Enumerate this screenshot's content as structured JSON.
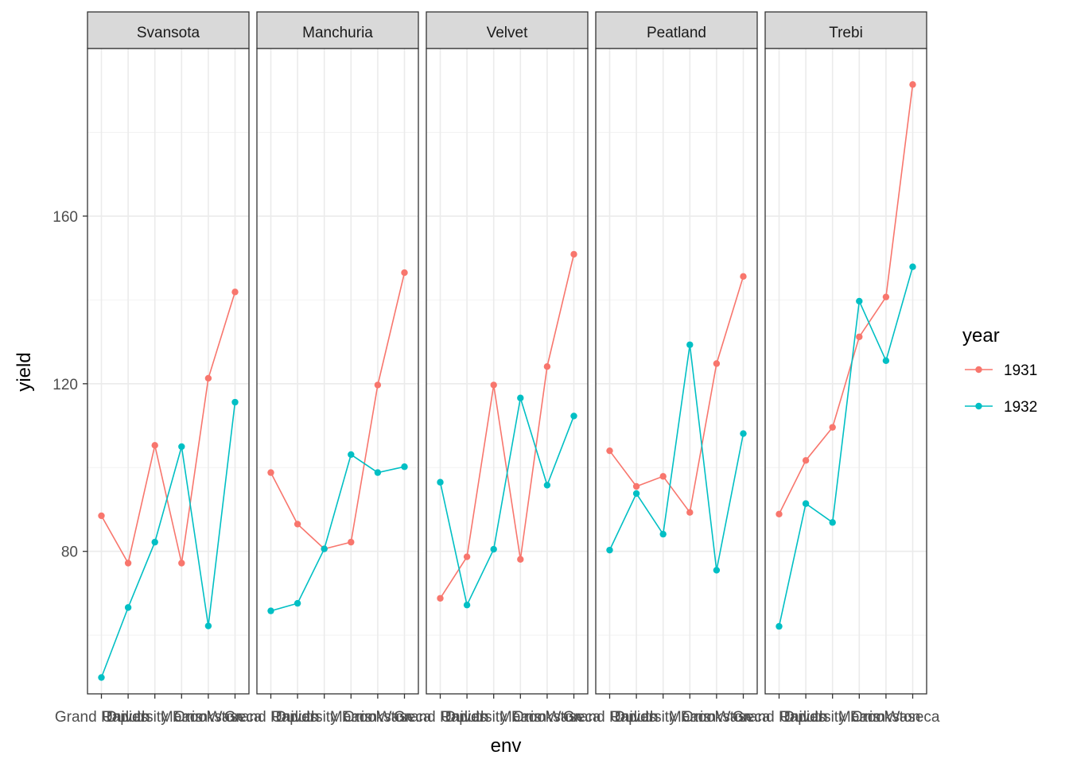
{
  "chart_data": {
    "type": "line",
    "xlabel": "env",
    "ylabel": "yield",
    "x": [
      "Grand Rapids",
      "Duluth",
      "University Farm",
      "Morris",
      "Crookston",
      "Waseca"
    ],
    "y_ticks": [
      80,
      120,
      160
    ],
    "ylim": [
      46,
      200
    ],
    "grid": true,
    "legend": {
      "title": "year",
      "position": "right",
      "entries": [
        {
          "label": "1931",
          "color": "#F8766D"
        },
        {
          "label": "1932",
          "color": "#00BFC4"
        }
      ]
    },
    "panels": [
      {
        "name": "Svansota",
        "series": [
          {
            "year": "1931",
            "values": [
              88.5,
              77.2,
              105.3,
              77.2,
              121.3,
              141.9
            ]
          },
          {
            "year": "1932",
            "values": [
              49.9,
              66.6,
              82.2,
              105.0,
              62.2,
              115.6
            ]
          }
        ]
      },
      {
        "name": "Manchuria",
        "series": [
          {
            "year": "1931",
            "values": [
              98.8,
              86.5,
              80.6,
              82.2,
              119.7,
              146.5
            ]
          },
          {
            "year": "1932",
            "values": [
              65.8,
              67.6,
              80.6,
              103.1,
              98.8,
              100.2
            ]
          }
        ]
      },
      {
        "name": "Velvet",
        "series": [
          {
            "year": "1931",
            "values": [
              68.8,
              78.7,
              119.7,
              78.1,
              124.1,
              150.9
            ]
          },
          {
            "year": "1932",
            "values": [
              96.5,
              67.2,
              80.5,
              116.6,
              95.8,
              112.3
            ]
          }
        ]
      },
      {
        "name": "Peatland",
        "series": [
          {
            "year": "1931",
            "values": [
              104.0,
              95.5,
              97.9,
              89.3,
              124.8,
              145.6
            ]
          },
          {
            "year": "1932",
            "values": [
              80.3,
              93.8,
              84.1,
              129.3,
              75.5,
              108.1
            ]
          }
        ]
      },
      {
        "name": "Trebi",
        "series": [
          {
            "year": "1931",
            "values": [
              88.9,
              101.7,
              109.6,
              131.2,
              140.7,
              191.4
            ]
          },
          {
            "year": "1932",
            "values": [
              62.1,
              91.4,
              86.9,
              139.7,
              125.5,
              147.9
            ]
          }
        ]
      }
    ]
  }
}
